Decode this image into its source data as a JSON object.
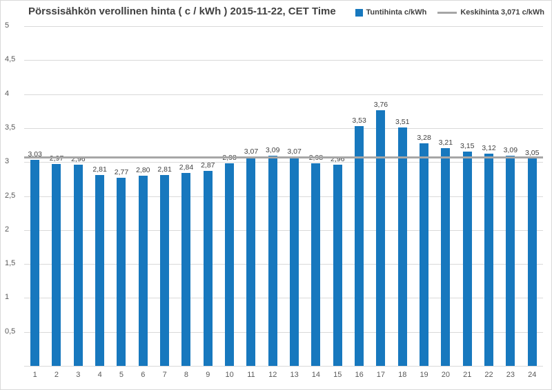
{
  "title": "Pörssisähkön verollinen hinta ( c / kWh ) 2015-11-22, CET Time",
  "legend": {
    "series": "Tuntihinta c/kWh",
    "average": "Keskihinta 3,071 c/kWh"
  },
  "colors": {
    "bar": "#1778be",
    "average": "#a6a6a6",
    "gridline": "#d9d9d9",
    "title_text": "#404040",
    "tick_text": "#595959"
  },
  "chart_data": {
    "type": "bar",
    "title": "Pörssisähkön verollinen hinta ( c / kWh ) 2015-11-22, CET Time",
    "xlabel": "",
    "ylabel": "",
    "categories": [
      "1",
      "2",
      "3",
      "4",
      "5",
      "6",
      "7",
      "8",
      "9",
      "10",
      "11",
      "12",
      "13",
      "14",
      "15",
      "16",
      "17",
      "18",
      "19",
      "20",
      "21",
      "22",
      "23",
      "24"
    ],
    "values": [
      3.03,
      2.97,
      2.96,
      2.81,
      2.77,
      2.8,
      2.81,
      2.84,
      2.87,
      2.98,
      3.07,
      3.09,
      3.07,
      2.98,
      2.96,
      3.53,
      3.76,
      3.51,
      3.28,
      3.21,
      3.15,
      3.12,
      3.09,
      3.05
    ],
    "value_labels": [
      "3,03",
      "2,97",
      "2,96",
      "2,81",
      "2,77",
      "2,80",
      "2,81",
      "2,84",
      "2,87",
      "2,98",
      "3,07",
      "3,09",
      "3,07",
      "2,98",
      "2,96",
      "3,53",
      "3,76",
      "3,51",
      "3,28",
      "3,21",
      "3,15",
      "3,12",
      "3,09",
      "3,05"
    ],
    "series_name": "Tuntihinta c/kWh",
    "average_value": 3.071,
    "average_name": "Keskihinta 3,071 c/kWh",
    "ylim": [
      0,
      5
    ],
    "ytick_step": 0.5,
    "yticks": [
      {
        "value": 0.5,
        "label": "0,5"
      },
      {
        "value": 1,
        "label": "1"
      },
      {
        "value": 1.5,
        "label": "1,5"
      },
      {
        "value": 2,
        "label": "2"
      },
      {
        "value": 2.5,
        "label": "2,5"
      },
      {
        "value": 3,
        "label": "3"
      },
      {
        "value": 3.5,
        "label": "3,5"
      },
      {
        "value": 4,
        "label": "4"
      },
      {
        "value": 4.5,
        "label": "4,5"
      },
      {
        "value": 5,
        "label": "5"
      }
    ],
    "grid": true,
    "legend_position": "top-right"
  }
}
